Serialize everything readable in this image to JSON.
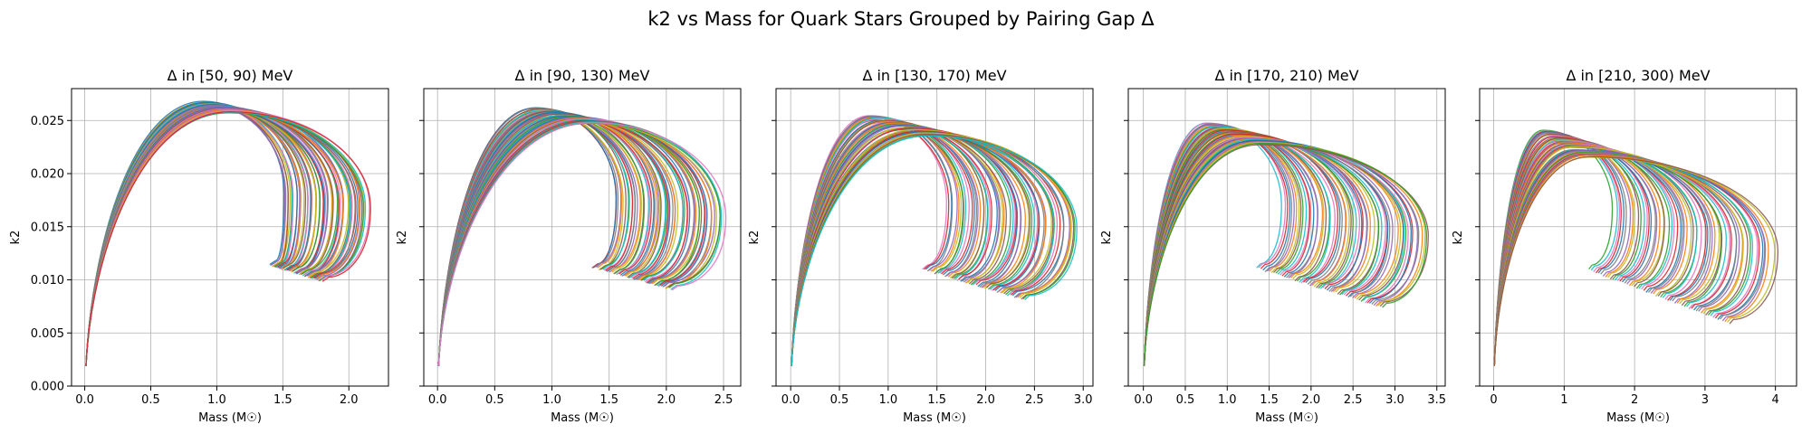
{
  "figure": {
    "title": "k2 vs Mass for Quark Stars Grouped by Pairing Gap Δ"
  },
  "palette": [
    "#1f77b4",
    "#ff7f0e",
    "#2ca02c",
    "#d62728",
    "#9467bd",
    "#8c564b",
    "#e377c2",
    "#7f7f7f",
    "#bcbd22",
    "#17becf"
  ],
  "chart_data": [
    {
      "type": "line",
      "title": "Δ in [50, 90) MeV",
      "xlabel": "Mass (M☉)",
      "ylabel": "k2",
      "xlim": [
        -0.1,
        2.3
      ],
      "ylim": [
        0.0,
        0.028
      ],
      "xticks": [
        0.0,
        0.5,
        1.0,
        1.5,
        2.0
      ],
      "xtick_labels": [
        "0.0",
        "0.5",
        "1.0",
        "1.5",
        "2.0"
      ],
      "yticks": [
        0.0,
        0.005,
        0.01,
        0.015,
        0.02,
        0.025
      ],
      "ytick_labels": [
        "0.000",
        "0.005",
        "0.010",
        "0.015",
        "0.020",
        "0.025"
      ],
      "grid": true,
      "family": {
        "mmax_range": [
          1.5,
          2.15
        ],
        "k2_peak_range": [
          0.0267,
          0.0258
        ],
        "m_peak_range": [
          0.9,
          1.1
        ],
        "m_end_range": [
          1.45,
          1.85
        ],
        "k2_end_range": [
          0.0118,
          0.0103
        ]
      }
    },
    {
      "type": "line",
      "title": "Δ in [90, 130) MeV",
      "xlabel": "Mass (M☉)",
      "ylabel": "k2",
      "xlim": [
        -0.12,
        2.65
      ],
      "ylim": [
        0.0,
        0.028
      ],
      "xticks": [
        0.0,
        0.5,
        1.0,
        1.5,
        2.0,
        2.5
      ],
      "xtick_labels": [
        "0.0",
        "0.5",
        "1.0",
        "1.5",
        "2.0",
        "2.5"
      ],
      "yticks": [
        0.0,
        0.005,
        0.01,
        0.015,
        0.02,
        0.025
      ],
      "ytick_labels": [
        "",
        "",
        "",
        "",
        "",
        ""
      ],
      "grid": true,
      "family": {
        "mmax_range": [
          1.55,
          2.5
        ],
        "k2_peak_range": [
          0.0261,
          0.0248
        ],
        "m_peak_range": [
          0.85,
          1.35
        ],
        "m_end_range": [
          1.4,
          2.1
        ],
        "k2_end_range": [
          0.0116,
          0.0095
        ]
      }
    },
    {
      "type": "line",
      "title": "Δ in [130, 170) MeV",
      "xlabel": "Mass (M☉)",
      "ylabel": "k2",
      "xlim": [
        -0.15,
        3.1
      ],
      "ylim": [
        0.0,
        0.028
      ],
      "xticks": [
        0.0,
        0.5,
        1.0,
        1.5,
        2.0,
        2.5,
        3.0
      ],
      "xtick_labels": [
        "0.0",
        "0.5",
        "1.0",
        "1.5",
        "2.0",
        "2.5",
        "3.0"
      ],
      "yticks": [
        0.0,
        0.005,
        0.01,
        0.015,
        0.02,
        0.025
      ],
      "ytick_labels": [
        "",
        "",
        "",
        "",
        "",
        ""
      ],
      "grid": true,
      "family": {
        "mmax_range": [
          1.6,
          2.95
        ],
        "k2_peak_range": [
          0.0254,
          0.0236
        ],
        "m_peak_range": [
          0.8,
          1.4
        ],
        "m_end_range": [
          1.4,
          2.45
        ],
        "k2_end_range": [
          0.0114,
          0.0085
        ]
      }
    },
    {
      "type": "line",
      "title": "Δ in [170, 210) MeV",
      "xlabel": "Mass (M☉)",
      "ylabel": "k2",
      "xlim": [
        -0.18,
        3.6
      ],
      "ylim": [
        0.0,
        0.028
      ],
      "xticks": [
        0.0,
        0.5,
        1.0,
        1.5,
        2.0,
        2.5,
        3.0,
        3.5
      ],
      "xtick_labels": [
        "0.0",
        "0.5",
        "1.0",
        "1.5",
        "2.0",
        "2.5",
        "3.0",
        "3.5"
      ],
      "yticks": [
        0.0,
        0.005,
        0.01,
        0.015,
        0.02,
        0.025
      ],
      "ytick_labels": [
        "",
        "",
        "",
        "",
        "",
        ""
      ],
      "grid": true,
      "family": {
        "mmax_range": [
          1.65,
          3.4
        ],
        "k2_peak_range": [
          0.0247,
          0.0228
        ],
        "m_peak_range": [
          0.75,
          1.4
        ],
        "m_end_range": [
          1.4,
          2.9
        ],
        "k2_end_range": [
          0.0115,
          0.0078
        ]
      }
    },
    {
      "type": "line",
      "title": "Δ in [210, 300) MeV",
      "xlabel": "Mass (M☉)",
      "ylabel": "k2",
      "xlim": [
        -0.2,
        4.3
      ],
      "ylim": [
        0.0,
        0.028
      ],
      "xticks": [
        0,
        1,
        2,
        3,
        4
      ],
      "xtick_labels": [
        "0",
        "1",
        "2",
        "3",
        "4"
      ],
      "yticks": [
        0.0,
        0.005,
        0.01,
        0.015,
        0.02,
        0.025
      ],
      "ytick_labels": [
        "",
        "",
        "",
        "",
        "",
        ""
      ],
      "grid": true,
      "family": {
        "mmax_range": [
          1.7,
          4.0
        ],
        "k2_peak_range": [
          0.024,
          0.0215
        ],
        "m_peak_range": [
          0.7,
          1.35
        ],
        "m_end_range": [
          1.4,
          3.4
        ],
        "k2_end_range": [
          0.0113,
          0.0063
        ]
      }
    }
  ]
}
